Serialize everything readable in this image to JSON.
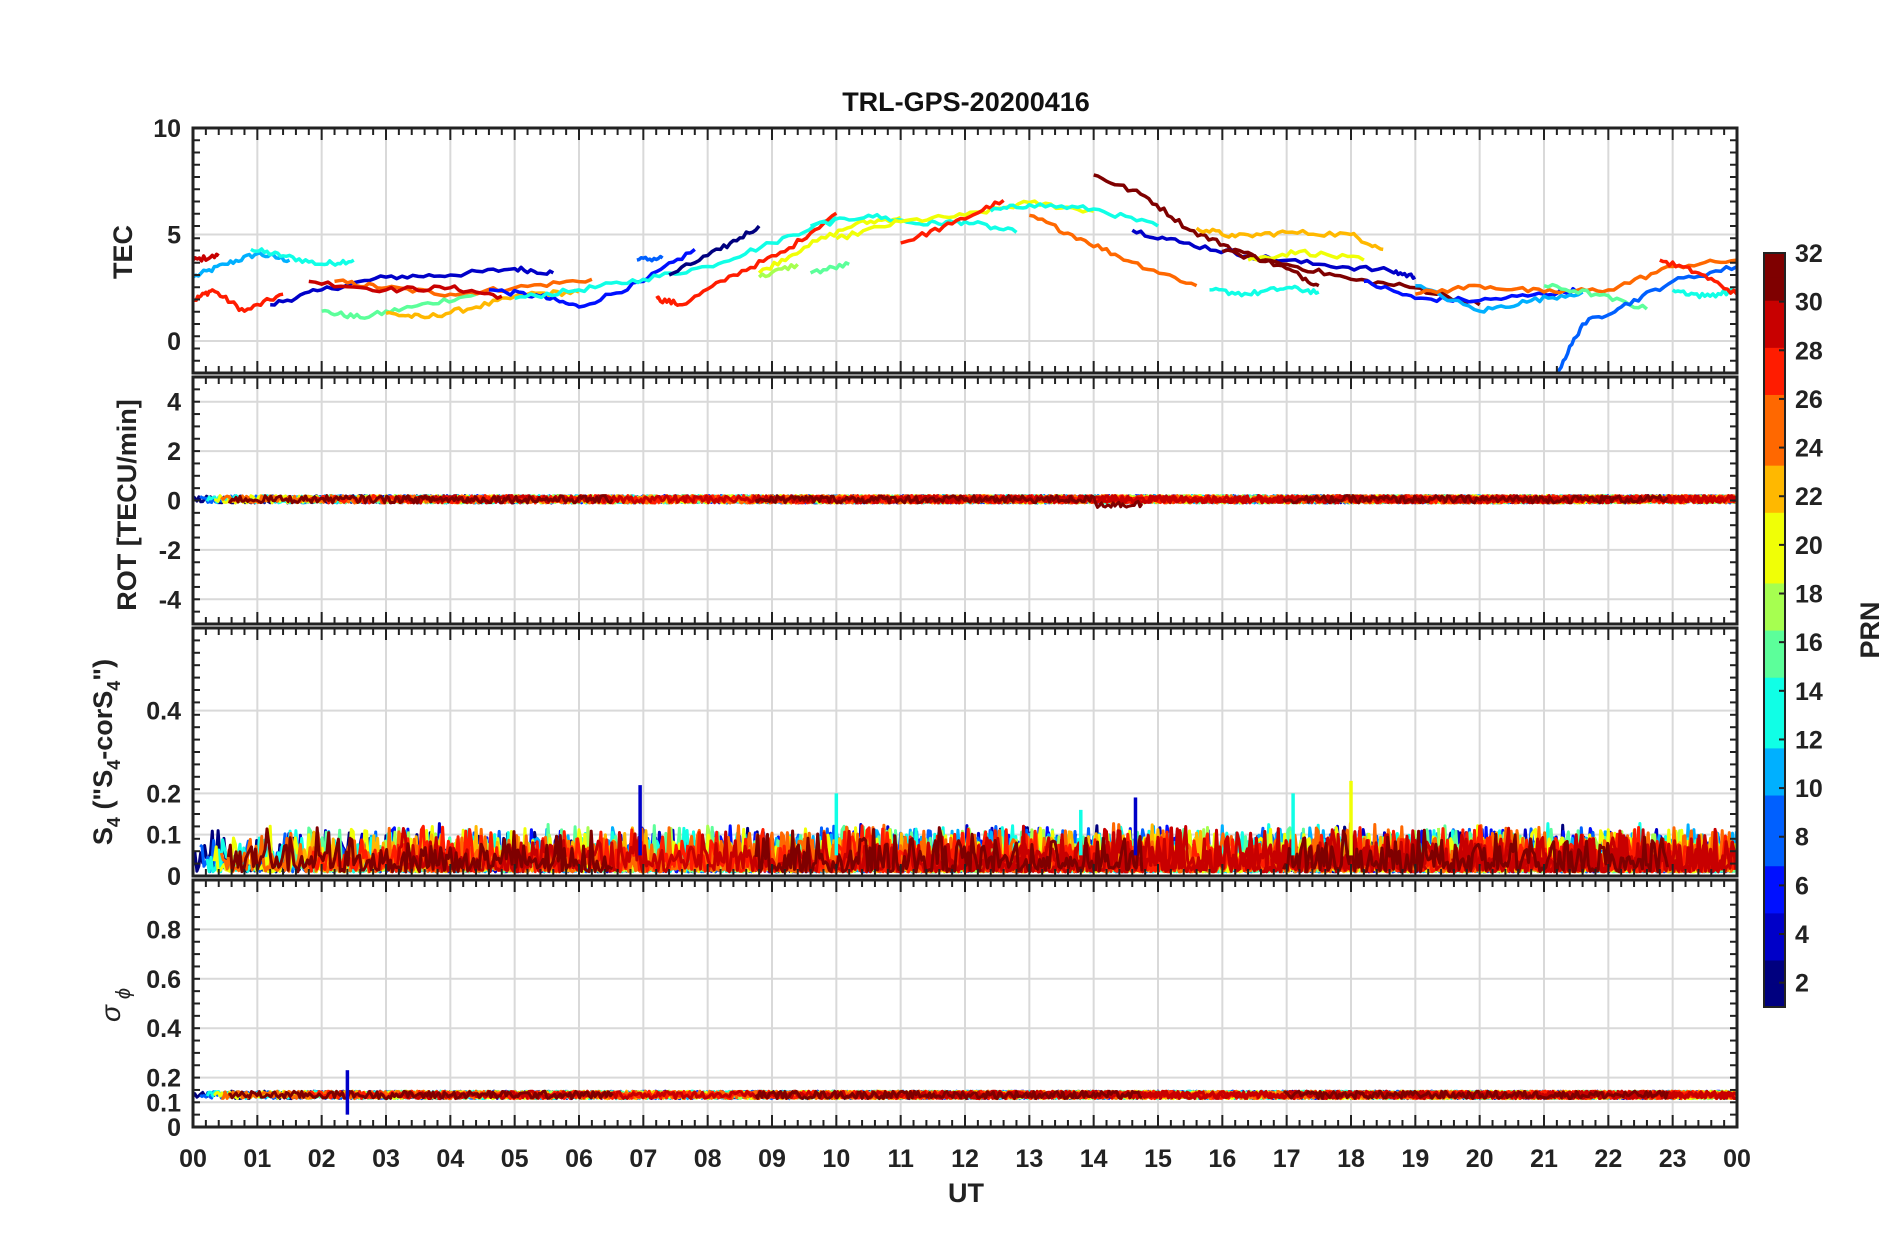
{
  "figure": {
    "title": "TRL-GPS-20200416",
    "xlabel": "UT",
    "x_tick_labels": [
      "00",
      "01",
      "02",
      "03",
      "04",
      "05",
      "06",
      "07",
      "08",
      "09",
      "10",
      "11",
      "12",
      "13",
      "14",
      "15",
      "16",
      "17",
      "18",
      "19",
      "20",
      "21",
      "22",
      "23",
      "00"
    ]
  },
  "colorbar": {
    "label": "PRN",
    "range": [
      1,
      32
    ],
    "tick_labels": [
      "2",
      "4",
      "6",
      "8",
      "10",
      "12",
      "14",
      "16",
      "18",
      "20",
      "22",
      "24",
      "26",
      "28",
      "30",
      "32"
    ],
    "colors": [
      "#00007f",
      "#0000c8",
      "#0010ff",
      "#0060ff",
      "#00b0ff",
      "#10ffe6",
      "#5cff9a",
      "#a6ff50",
      "#f0ff06",
      "#ffb800",
      "#ff6800",
      "#ff1c00",
      "#c80000",
      "#7f0000"
    ]
  },
  "chart_data": [
    {
      "type": "line",
      "panel": "TEC",
      "ylabel": "TEC",
      "xlim": [
        0,
        24
      ],
      "ylim": [
        -1.5,
        10
      ],
      "y_ticks": [
        0,
        5,
        10
      ],
      "y_tick_labels": [
        "0",
        "5",
        "10"
      ],
      "x_grid": true,
      "y_grid": true,
      "series": [
        {
          "prn": 10,
          "x": [
            0.0,
            0.5,
            1.0,
            1.5
          ],
          "y": [
            3.0,
            3.6,
            4.1,
            3.8
          ]
        },
        {
          "prn": 12,
          "x": [
            0.9,
            1.4,
            2.0,
            2.5
          ],
          "y": [
            4.3,
            4.0,
            3.6,
            3.8
          ]
        },
        {
          "prn": 27,
          "x": [
            0.0,
            0.3,
            0.8,
            1.4
          ],
          "y": [
            1.9,
            2.4,
            1.4,
            2.2
          ]
        },
        {
          "prn": 29,
          "x": [
            0.0,
            0.4
          ],
          "y": [
            3.8,
            4.0
          ]
        },
        {
          "prn": 3,
          "x": [
            1.2,
            2.0,
            3.0,
            4.0,
            5.0,
            5.6
          ],
          "y": [
            1.7,
            2.4,
            3.0,
            3.1,
            3.4,
            3.2
          ]
        },
        {
          "prn": 16,
          "x": [
            2.0,
            2.6,
            3.4,
            4.4
          ],
          "y": [
            1.4,
            1.1,
            1.6,
            2.2
          ]
        },
        {
          "prn": 22,
          "x": [
            3.0,
            3.6,
            4.4,
            5.2,
            6.0
          ],
          "y": [
            1.3,
            1.1,
            1.6,
            2.2,
            2.3
          ]
        },
        {
          "prn": 25,
          "x": [
            2.2,
            3.0,
            4.0,
            5.0,
            6.2
          ],
          "y": [
            2.8,
            2.5,
            2.2,
            2.5,
            2.9
          ]
        },
        {
          "prn": 6,
          "x": [
            4.6,
            5.4,
            6.0,
            7.0,
            7.8
          ],
          "y": [
            2.4,
            2.1,
            1.6,
            2.8,
            4.3
          ]
        },
        {
          "prn": 12,
          "x": [
            5.0,
            6.0,
            7.0,
            8.0,
            9.0,
            10.0
          ],
          "y": [
            2.0,
            2.4,
            2.9,
            3.5,
            4.6,
            5.8
          ]
        },
        {
          "prn": 29,
          "x": [
            1.8,
            3.0,
            4.0,
            4.8
          ],
          "y": [
            2.8,
            2.4,
            2.5,
            2.1
          ]
        },
        {
          "prn": 9,
          "x": [
            6.9,
            7.3
          ],
          "y": [
            3.8,
            3.9
          ]
        },
        {
          "prn": 2,
          "x": [
            7.4,
            8.2,
            8.8
          ],
          "y": [
            3.1,
            4.3,
            5.4
          ]
        },
        {
          "prn": 28,
          "x": [
            7.2,
            7.6,
            8.4,
            9.2,
            10.0
          ],
          "y": [
            2.0,
            1.7,
            3.1,
            4.2,
            6.0
          ]
        },
        {
          "prn": 20,
          "x": [
            8.8,
            9.5,
            10.3,
            11.0
          ],
          "y": [
            3.2,
            4.4,
            5.5,
            5.8
          ]
        },
        {
          "prn": 17,
          "x": [
            8.8,
            9.4
          ],
          "y": [
            3.0,
            3.6
          ]
        },
        {
          "prn": 15,
          "x": [
            9.6,
            10.2
          ],
          "y": [
            3.2,
            3.6
          ]
        },
        {
          "prn": 12,
          "x": [
            9.6,
            10.5,
            11.3,
            12.0,
            12.8
          ],
          "y": [
            5.4,
            5.9,
            5.5,
            5.6,
            5.1
          ]
        },
        {
          "prn": 19,
          "x": [
            10.0,
            11.0,
            12.0,
            13.0,
            14.0
          ],
          "y": [
            4.8,
            5.6,
            5.9,
            6.5,
            6.1
          ]
        },
        {
          "prn": 28,
          "x": [
            11.0,
            11.8,
            12.6
          ],
          "y": [
            4.6,
            5.5,
            6.6
          ]
        },
        {
          "prn": 13,
          "x": [
            12.4,
            13.0,
            14.0,
            15.0
          ],
          "y": [
            6.1,
            6.4,
            6.2,
            5.4
          ]
        },
        {
          "prn": 24,
          "x": [
            13.0,
            13.8,
            14.6,
            15.6
          ],
          "y": [
            5.9,
            4.8,
            3.7,
            2.6
          ]
        },
        {
          "prn": 32,
          "x": [
            14.0,
            14.8,
            15.5,
            16.2,
            17.0,
            17.5
          ],
          "y": [
            7.8,
            6.8,
            5.2,
            4.3,
            3.4,
            2.6
          ]
        },
        {
          "prn": 4,
          "x": [
            14.6,
            15.4,
            16.4,
            17.5,
            18.6,
            19.0
          ],
          "y": [
            5.2,
            4.6,
            4.0,
            3.6,
            3.3,
            3.0
          ]
        },
        {
          "prn": 23,
          "x": [
            15.6,
            16.2,
            17.0,
            18.0,
            18.5
          ],
          "y": [
            5.3,
            4.9,
            5.1,
            5.0,
            4.3
          ]
        },
        {
          "prn": 21,
          "x": [
            16.4,
            17.2,
            18.2
          ],
          "y": [
            3.8,
            4.2,
            3.8
          ]
        },
        {
          "prn": 13,
          "x": [
            15.8,
            16.4,
            17.0,
            17.5
          ],
          "y": [
            2.4,
            2.2,
            2.5,
            2.3
          ]
        },
        {
          "prn": 31,
          "x": [
            16.0,
            17.0,
            18.0,
            19.0,
            20.0
          ],
          "y": [
            4.2,
            3.6,
            2.9,
            2.5,
            1.7
          ]
        },
        {
          "prn": 6,
          "x": [
            18.2,
            19.0,
            20.0,
            21.0,
            21.6
          ],
          "y": [
            2.8,
            2.0,
            1.9,
            2.2,
            2.4
          ]
        },
        {
          "prn": 11,
          "x": [
            19.0,
            20.0,
            20.8,
            21.6
          ],
          "y": [
            2.6,
            1.4,
            1.9,
            2.3
          ]
        },
        {
          "prn": 26,
          "x": [
            19.0,
            20.0,
            21.0,
            22.0,
            23.0,
            24.0
          ],
          "y": [
            2.2,
            2.6,
            2.3,
            2.4,
            3.5,
            3.8
          ]
        },
        {
          "prn": 16,
          "x": [
            21.0,
            21.8,
            22.6
          ],
          "y": [
            2.6,
            2.2,
            1.5
          ]
        },
        {
          "prn": 8,
          "x": [
            21.2,
            21.6,
            22.2,
            23.0,
            24.0
          ],
          "y": [
            -1.5,
            0.8,
            1.6,
            2.8,
            3.5
          ]
        },
        {
          "prn": 14,
          "x": [
            23.0,
            23.5,
            24.0
          ],
          "y": [
            2.4,
            2.1,
            2.4
          ]
        },
        {
          "prn": 28,
          "x": [
            22.8,
            23.4,
            24.0
          ],
          "y": [
            3.8,
            3.2,
            2.2
          ]
        }
      ]
    },
    {
      "type": "line",
      "panel": "ROT",
      "ylabel": "ROT [TECU/min]",
      "xlim": [
        0,
        24
      ],
      "ylim": [
        -5,
        5
      ],
      "y_ticks": [
        -4,
        -2,
        0,
        2,
        4
      ],
      "y_tick_labels": [
        "-4",
        "-2",
        "0",
        "2",
        "4"
      ],
      "x_grid": true,
      "y_grid": true,
      "series_note": "Rate of TEC for all PRNs stays within roughly -0.3 to +0.4 TECU/min; dark red PRN dips slightly negative near 14-15 UT."
    },
    {
      "type": "line",
      "panel": "S4",
      "ylabel": "S4 (\"S4-corS4\")",
      "xlim": [
        0,
        24
      ],
      "ylim": [
        0,
        0.6
      ],
      "y_ticks": [
        0,
        0.1,
        0.2,
        0.4
      ],
      "y_tick_labels": [
        "0",
        "0.1",
        "0.2",
        "0.4"
      ],
      "x_grid": true,
      "y_grid": true,
      "peaks": [
        {
          "x": 6.95,
          "y": 0.22,
          "prn": 4
        },
        {
          "x": 10.0,
          "y": 0.2,
          "prn": 14
        },
        {
          "x": 14.65,
          "y": 0.19,
          "prn": 3
        },
        {
          "x": 18.0,
          "y": 0.23,
          "prn": 21
        },
        {
          "x": 17.1,
          "y": 0.2,
          "prn": 13
        },
        {
          "x": 13.8,
          "y": 0.16,
          "prn": 12
        }
      ],
      "series_note": "Dense noisy traces for all PRNs, mostly between 0 and 0.15."
    },
    {
      "type": "line",
      "panel": "sigma_phi",
      "ylabel": "σ ϕ",
      "xlim": [
        0,
        24
      ],
      "ylim": [
        0,
        1
      ],
      "y_ticks": [
        0,
        0.1,
        0.2,
        0.4,
        0.6,
        0.8
      ],
      "y_tick_labels": [
        "0",
        "0.1",
        "0.2",
        "0.4",
        "0.6",
        "0.8"
      ],
      "x_grid": true,
      "y_grid": true,
      "peaks": [
        {
          "x": 2.4,
          "y": 0.23,
          "prn": 3
        }
      ],
      "series_note": "Phase scintillation index ~0.12-0.15 for all PRNs throughout the day."
    }
  ]
}
